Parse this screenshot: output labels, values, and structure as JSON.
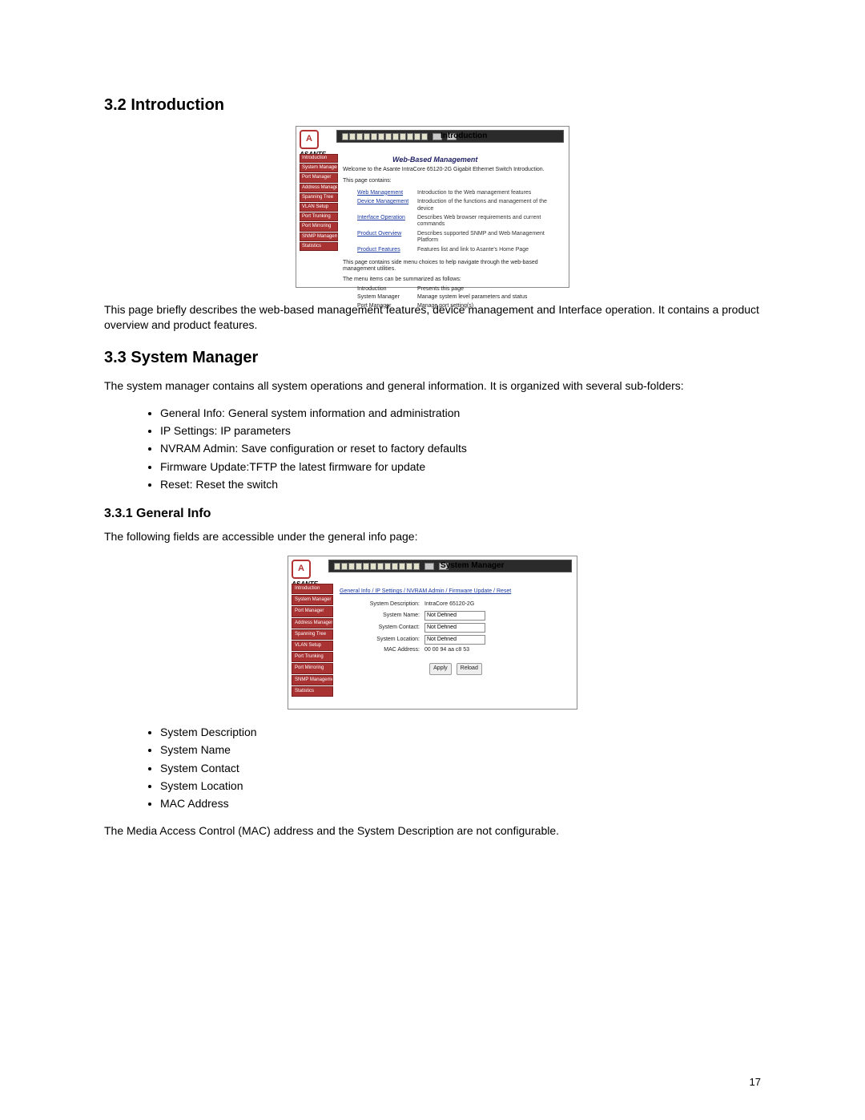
{
  "sections": {
    "s32": {
      "heading": "3.2 Introduction",
      "desc": "This page briefly describes the web-based management features, device management and Interface operation. It contains a product overview and product features."
    },
    "s33": {
      "heading": "3.3 System Manager",
      "intro": "The system manager contains all system operations and general information. It is organized with several sub-folders:",
      "bullets": [
        "General Info: General system information and administration",
        "IP Settings: IP parameters",
        "NVRAM Admin: Save configuration or reset to factory defaults",
        "Firmware Update:TFTP the latest firmware for update",
        "Reset: Reset the switch"
      ]
    },
    "s331": {
      "heading": "3.3.1 General Info",
      "intro": "The following fields are accessible under the general info page:",
      "bullets": [
        "System Description",
        "System Name",
        "System Contact",
        "System Location",
        "MAC Address"
      ],
      "note": "The Media Access Control (MAC) address and the System Description are not configurable."
    }
  },
  "screenshot1": {
    "brand": "ASANTE",
    "title": "Introduction",
    "subtitle": "Web-Based Management",
    "welcome": "Welcome to the Asante IntraCore 65120-2G Gigabit Ethernet Switch Introduction.",
    "contains": "This page contains:",
    "sidebar": [
      "Introduction",
      "System Manager",
      "Port Manager",
      "Address Manager",
      "Spanning Tree",
      "VLAN Setup",
      "Port Trunking",
      "Port Mirroring",
      "SNMP Management",
      "Statistics"
    ],
    "links": [
      {
        "name": "Web Management",
        "desc": "Introduction to the Web management features"
      },
      {
        "name": "Device Management",
        "desc": "Introduction of the functions and management of the device"
      },
      {
        "name": "Interface Operation",
        "desc": "Describes Web browser requirements and current commands"
      },
      {
        "name": "Product Overview",
        "desc": "Describes supported SNMP and Web Management Platform"
      },
      {
        "name": "Product Features",
        "desc": "Features list and link to Asante's Home Page"
      }
    ],
    "note": "This page contains side menu choices to help navigate through the web-based management utilities.",
    "summary_label": "The menu items can be summarized as follows:",
    "summary": [
      {
        "name": "Introduction",
        "desc": "Presents this page"
      },
      {
        "name": "System Manager",
        "desc": "Manage system level parameters and status"
      },
      {
        "name": "Port Manager",
        "desc": "Manage port setting(s)"
      }
    ]
  },
  "screenshot2": {
    "brand": "ASANTE",
    "title": "System Manager",
    "breadcrumb": "General Info / IP Settings / NVRAM Admin / Firmware Update / Reset",
    "sidebar": [
      "Introduction",
      "System Manager",
      "Port Manager",
      "Address Manager",
      "Spanning Tree",
      "VLAN Setup",
      "Port Trunking",
      "Port Mirroring",
      "SNMP Management",
      "Statistics"
    ],
    "fields": {
      "desc_label": "System Description:",
      "desc_value": "IntraCore 65120-2G",
      "name_label": "System Name:",
      "name_value": "Not Defined",
      "contact_label": "System Contact:",
      "contact_value": "Not Defined",
      "location_label": "System Location:",
      "location_value": "Not Defined",
      "mac_label": "MAC Address:",
      "mac_value": "00 00 94 aa c8 53"
    },
    "buttons": {
      "apply": "Apply",
      "reload": "Reload"
    }
  },
  "page_number": "17"
}
